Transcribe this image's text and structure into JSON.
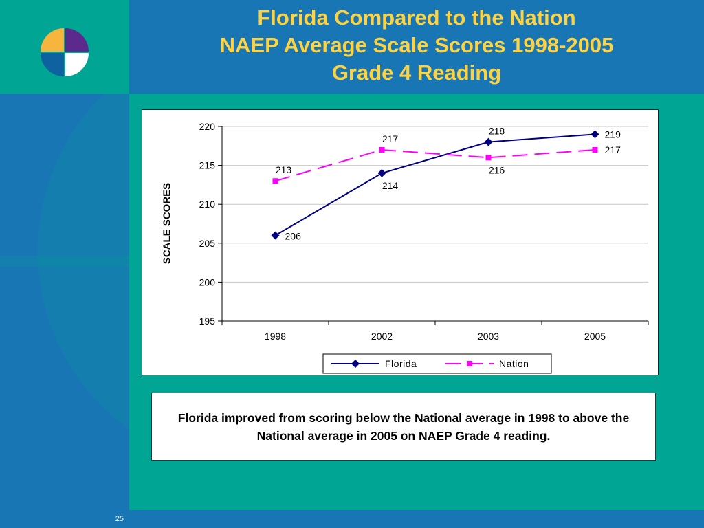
{
  "slide": {
    "title_lines": [
      "Florida Compared to the Nation",
      "NAEP Average Scale Scores 1998-2005",
      "Grade 4 Reading"
    ],
    "note_text": "Florida improved from scoring below the National average in 1998 to above the National average in 2005 on NAEP Grade 4 reading.",
    "page_number": "25",
    "colors": {
      "background": "#00a693",
      "panel": "#1976b5",
      "title": "#ffd23f",
      "logo": [
        "#f6b53c",
        "#5b2a8c",
        "#0f62a0",
        "#ffffff"
      ]
    },
    "logo_icon": "four-quadrant-circle-logo"
  },
  "chart_data": {
    "type": "line",
    "categories": [
      "1998",
      "2002",
      "2003",
      "2005"
    ],
    "ylabel": "SCALE SCORES",
    "ylim": [
      195,
      220
    ],
    "yticks": [
      195,
      200,
      205,
      210,
      215,
      220
    ],
    "grid": true,
    "legend": "bottom",
    "series": [
      {
        "name": "Florida",
        "values": [
          206,
          214,
          218,
          219
        ],
        "color": "#000080",
        "style": "solid",
        "marker": "diamond"
      },
      {
        "name": "Nation",
        "values": [
          213,
          217,
          216,
          217
        ],
        "color": "#ff00ff",
        "style": "dashed",
        "marker": "square"
      }
    ]
  }
}
